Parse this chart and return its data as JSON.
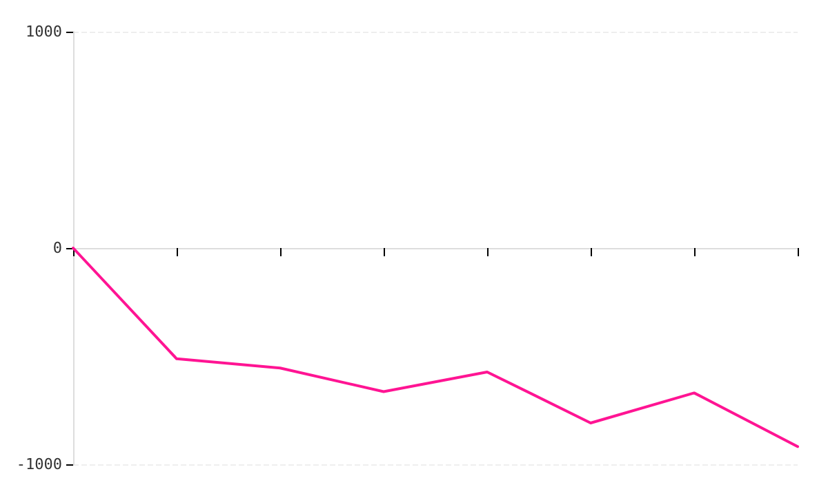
{
  "chart_data": {
    "type": "line",
    "categories": [
      null,
      null,
      null,
      null,
      null,
      null,
      null,
      null
    ],
    "series": [
      {
        "color": "#ff1493",
        "values": [
          0,
          -512,
          -555,
          -664,
          -573,
          -809,
          -670,
          -918
        ]
      }
    ],
    "ylim": [
      -1000,
      1000
    ],
    "yticks": [
      -1000,
      0,
      1000
    ],
    "tick_labels": "y",
    "grid": "y",
    "marker": "none",
    "line_style": "solid"
  }
}
